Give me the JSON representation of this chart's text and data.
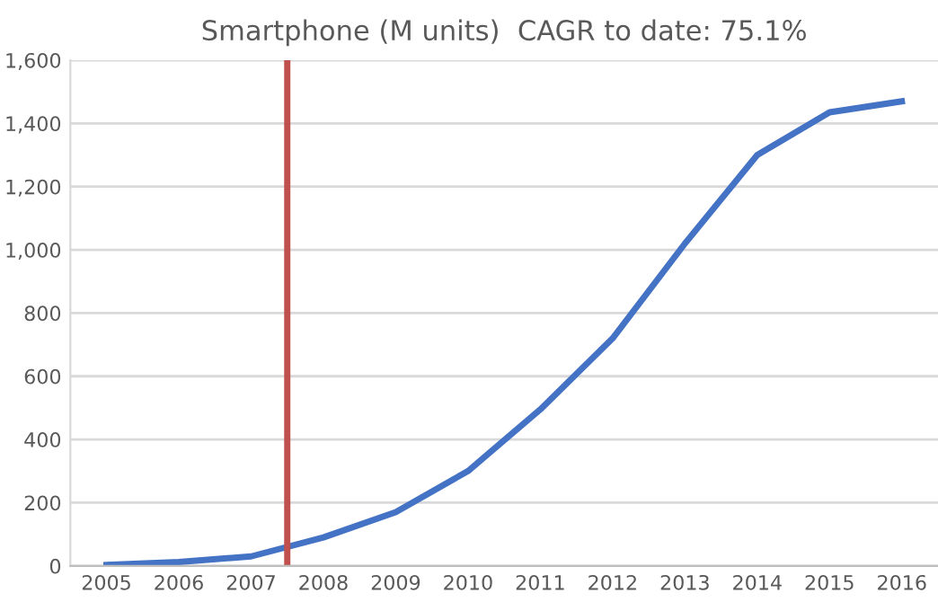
{
  "chart_data": {
    "type": "line",
    "title": "Smartphone (M units)  CAGR to date: 75.1%",
    "x": [
      2005,
      2006,
      2007,
      2008,
      2009,
      2010,
      2011,
      2012,
      2013,
      2014,
      2015,
      2016
    ],
    "series": [
      {
        "color": "#4472c4",
        "values": [
          3,
          12,
          30,
          90,
          170,
          300,
          495,
          720,
          1020,
          1300,
          1435,
          1470
        ]
      }
    ],
    "xlim": [
      2004.5,
      2016.5
    ],
    "xticks": [
      2005,
      2006,
      2007,
      2008,
      2009,
      2010,
      2011,
      2012,
      2013,
      2014,
      2015,
      2016
    ],
    "ylim": [
      0,
      1600
    ],
    "yticks": [
      {
        "value": 0,
        "label": "0"
      },
      {
        "value": 200,
        "label": "200"
      },
      {
        "value": 400,
        "label": "400"
      },
      {
        "value": 600,
        "label": "600"
      },
      {
        "value": 800,
        "label": "800"
      },
      {
        "value": 1000,
        "label": "1,000"
      },
      {
        "value": 1200,
        "label": "1,200"
      },
      {
        "value": 1400,
        "label": "1,400"
      },
      {
        "value": 1600,
        "label": "1,600"
      }
    ],
    "ref_lines": [
      {
        "axis": "x",
        "value": 2007.5,
        "color": "#c0504d"
      }
    ],
    "grid": "y",
    "legend": false,
    "marker": "none",
    "line_style": "solid"
  }
}
